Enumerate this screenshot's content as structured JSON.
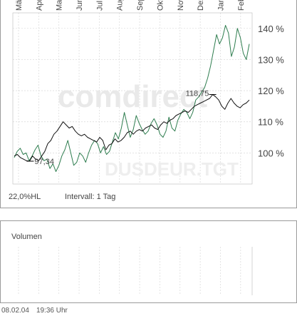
{
  "watermark": {
    "brand": "comdirect",
    "symbol": "DUSDEUR.TGT"
  },
  "footer": {
    "hl_label": "22,0%HL",
    "interval_label": "Intervall: 1 Tag"
  },
  "volume_panel": {
    "title": "Volumen"
  },
  "timestamp": {
    "date": "08.02.04",
    "time": "19:36 Uhr"
  },
  "colors": {
    "series_green": "#2e7d4f",
    "series_black": "#111111",
    "grid": "#d8d8d8"
  },
  "chart_data": {
    "type": "line",
    "x_labels": [
      "Mär",
      "Apr",
      "Mai",
      "Jun",
      "Jul",
      "Aug",
      "Sep",
      "Okt",
      "Nov",
      "Dez",
      "Jan",
      "Feb"
    ],
    "ylim": [
      90,
      145
    ],
    "y_ticks": [
      100,
      110,
      120,
      130,
      140
    ],
    "y_tick_labels": [
      "100 %",
      "110 %",
      "120 %",
      "130 %",
      "140 %"
    ],
    "annotations": {
      "low": "97,34",
      "high": "118,75"
    },
    "grid": true,
    "series": [
      {
        "color": "green",
        "values": [
          98.5,
          100.5,
          101.5,
          99.5,
          100,
          97.5,
          99,
          101,
          102.5,
          99,
          97.5,
          98,
          95,
          96.5,
          94,
          96,
          99,
          101,
          104,
          100,
          96,
          97,
          100,
          99,
          97,
          100,
          102.5,
          104,
          103,
          100,
          102,
          99.5,
          100.5,
          103.5,
          106.5,
          104.5,
          108,
          113,
          109,
          105,
          107.5,
          112,
          109.5,
          107.5,
          106,
          107,
          109.5,
          111,
          109,
          106,
          105,
          107,
          111.5,
          108,
          107,
          110.5,
          112.5,
          114,
          113,
          111,
          113,
          117,
          118,
          119.5,
          121,
          124,
          128,
          133,
          138,
          135,
          137,
          141,
          138.5,
          131,
          134,
          140,
          137,
          132,
          130,
          135
        ]
      },
      {
        "color": "black",
        "values": [
          99,
          99.5,
          98.5,
          98,
          97.5,
          97.34,
          99,
          98,
          97.5,
          99,
          100.5,
          103,
          104,
          106,
          107,
          108.5,
          110,
          109,
          108,
          108.5,
          107,
          106,
          105.5,
          106,
          105,
          104.5,
          104,
          103.5,
          105,
          104,
          101,
          102.5,
          103,
          104.5,
          103.5,
          104,
          105,
          106.5,
          107,
          106,
          107,
          107.5,
          107,
          108,
          108.5,
          109,
          108,
          107.5,
          109,
          110,
          109.5,
          110.5,
          111,
          112,
          112.5,
          113,
          113.5,
          113,
          114,
          115,
          115.5,
          116,
          116.5,
          117,
          117.5,
          118.75,
          118,
          117,
          115,
          114,
          116,
          117.5,
          116,
          115,
          114.5,
          115.5,
          116,
          117
        ]
      }
    ]
  }
}
